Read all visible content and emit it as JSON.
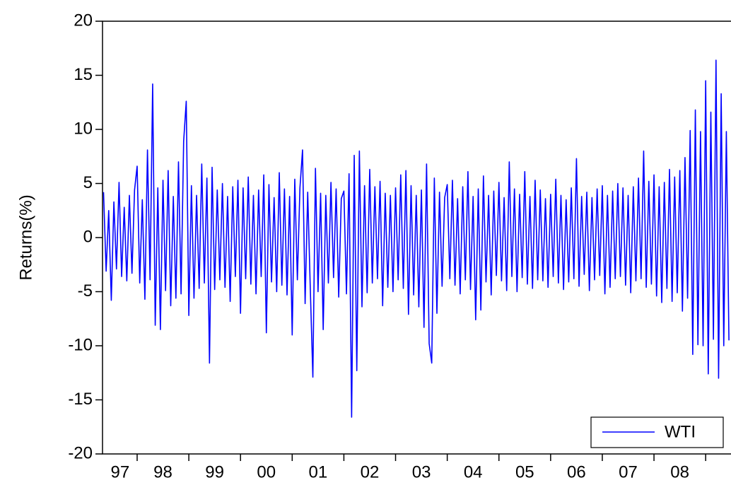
{
  "chart_data": {
    "type": "line",
    "y_label": "Returns(%)",
    "xlim": [
      1997.33,
      2009.49
    ],
    "ylim": [
      -20,
      20
    ],
    "yticks": [
      -20,
      -15,
      -10,
      -5,
      0,
      5,
      10,
      15,
      20
    ],
    "xticks": [
      {
        "value": 1997.67,
        "label": "97"
      },
      {
        "value": 1998.5,
        "label": "98"
      },
      {
        "value": 1999.5,
        "label": "99"
      },
      {
        "value": 2000.5,
        "label": "00"
      },
      {
        "value": 2001.5,
        "label": "01"
      },
      {
        "value": 2002.5,
        "label": "02"
      },
      {
        "value": 2003.5,
        "label": "03"
      },
      {
        "value": 2004.5,
        "label": "04"
      },
      {
        "value": 2005.5,
        "label": "05"
      },
      {
        "value": 2006.5,
        "label": "06"
      },
      {
        "value": 2007.5,
        "label": "07"
      },
      {
        "value": 2008.5,
        "label": "08"
      }
    ],
    "xtick_marks": [
      1998,
      1999,
      2000,
      2001,
      2002,
      2003,
      2004,
      2005,
      2006,
      2007,
      2008,
      2009
    ],
    "legend": "bottom-right",
    "x": [
      1997.35,
      1997.4,
      1997.45,
      1997.5,
      1997.55,
      1997.6,
      1997.65,
      1997.7,
      1997.75,
      1997.8,
      1997.85,
      1997.9,
      1997.95,
      1998,
      1998.05,
      1998.1,
      1998.15,
      1998.2,
      1998.25,
      1998.3,
      1998.35,
      1998.4,
      1998.45,
      1998.5,
      1998.55,
      1998.6,
      1998.65,
      1998.7,
      1998.75,
      1998.8,
      1998.85,
      1998.9,
      1998.95,
      1999,
      1999.05,
      1999.1,
      1999.15,
      1999.2,
      1999.25,
      1999.3,
      1999.35,
      1999.4,
      1999.45,
      1999.5,
      1999.55,
      1999.6,
      1999.65,
      1999.7,
      1999.75,
      1999.8,
      1999.85,
      1999.9,
      1999.95,
      2000,
      2000.05,
      2000.1,
      2000.15,
      2000.2,
      2000.25,
      2000.3,
      2000.35,
      2000.4,
      2000.45,
      2000.5,
      2000.55,
      2000.6,
      2000.65,
      2000.7,
      2000.75,
      2000.8,
      2000.85,
      2000.9,
      2000.95,
      2001,
      2001.05,
      2001.1,
      2001.15,
      2001.2,
      2001.25,
      2001.3,
      2001.35,
      2001.4,
      2001.45,
      2001.5,
      2001.55,
      2001.6,
      2001.65,
      2001.7,
      2001.75,
      2001.8,
      2001.85,
      2001.9,
      2001.95,
      2002,
      2002.05,
      2002.1,
      2002.15,
      2002.2,
      2002.25,
      2002.3,
      2002.35,
      2002.4,
      2002.45,
      2002.5,
      2002.55,
      2002.6,
      2002.65,
      2002.7,
      2002.75,
      2002.8,
      2002.85,
      2002.9,
      2002.95,
      2003,
      2003.05,
      2003.1,
      2003.15,
      2003.2,
      2003.25,
      2003.3,
      2003.35,
      2003.4,
      2003.45,
      2003.5,
      2003.55,
      2003.6,
      2003.65,
      2003.7,
      2003.75,
      2003.8,
      2003.85,
      2003.9,
      2003.95,
      2004,
      2004.05,
      2004.1,
      2004.15,
      2004.2,
      2004.25,
      2004.3,
      2004.35,
      2004.4,
      2004.45,
      2004.5,
      2004.55,
      2004.6,
      2004.65,
      2004.7,
      2004.75,
      2004.8,
      2004.85,
      2004.9,
      2004.95,
      2005,
      2005.05,
      2005.1,
      2005.15,
      2005.2,
      2005.25,
      2005.3,
      2005.35,
      2005.4,
      2005.45,
      2005.5,
      2005.55,
      2005.6,
      2005.65,
      2005.7,
      2005.75,
      2005.8,
      2005.85,
      2005.9,
      2005.95,
      2006,
      2006.05,
      2006.1,
      2006.15,
      2006.2,
      2006.25,
      2006.3,
      2006.35,
      2006.4,
      2006.45,
      2006.5,
      2006.55,
      2006.6,
      2006.65,
      2006.7,
      2006.75,
      2006.8,
      2006.85,
      2006.9,
      2006.95,
      2007,
      2007.05,
      2007.1,
      2007.15,
      2007.2,
      2007.25,
      2007.3,
      2007.35,
      2007.4,
      2007.45,
      2007.5,
      2007.55,
      2007.6,
      2007.65,
      2007.7,
      2007.75,
      2007.8,
      2007.85,
      2007.9,
      2007.95,
      2008,
      2008.05,
      2008.1,
      2008.15,
      2008.2,
      2008.25,
      2008.3,
      2008.35,
      2008.4,
      2008.45,
      2008.5,
      2008.55,
      2008.6,
      2008.65,
      2008.7,
      2008.75,
      2008.8,
      2008.85,
      2008.9,
      2008.95,
      2009,
      2009.05,
      2009.1,
      2009.15,
      2009.2,
      2009.25,
      2009.3,
      2009.35,
      2009.4,
      2009.45
    ],
    "series": [
      {
        "name": "WTI",
        "color": "#0000ff",
        "values": [
          4.2,
          -3.1,
          2.5,
          -5.8,
          3.3,
          -2.9,
          5.1,
          -3.6,
          2.8,
          -4.0,
          3.9,
          -3.3,
          4.4,
          6.6,
          -4.2,
          3.5,
          -5.7,
          8.1,
          -3.9,
          14.2,
          -8.1,
          4.6,
          -8.5,
          5.3,
          -4.9,
          6.2,
          -6.3,
          3.8,
          -5.6,
          7.0,
          -5.2,
          8.9,
          12.6,
          -7.2,
          4.8,
          -5.6,
          3.9,
          -4.7,
          6.8,
          -4.2,
          5.5,
          -11.6,
          6.5,
          -4.8,
          4.4,
          -3.9,
          5.0,
          -4.6,
          3.8,
          -5.9,
          4.7,
          -3.6,
          5.3,
          -7.0,
          4.6,
          -3.8,
          5.6,
          -4.3,
          3.9,
          -5.2,
          4.4,
          -3.6,
          5.8,
          -8.8,
          4.9,
          -4.1,
          3.7,
          -5.0,
          6.0,
          -4.4,
          4.5,
          -5.3,
          3.8,
          -9.0,
          5.4,
          -3.9,
          4.6,
          8.1,
          -6.1,
          4.2,
          -4.7,
          -12.9,
          6.4,
          -5.0,
          4.1,
          -8.5,
          3.9,
          -4.2,
          5.1,
          -3.7,
          4.5,
          -5.5,
          3.6,
          4.3,
          -5.2,
          5.9,
          -16.6,
          7.6,
          -12.3,
          8.0,
          -6.4,
          4.8,
          -5.1,
          6.3,
          -4.2,
          4.7,
          -3.8,
          5.2,
          -6.3,
          4.1,
          -4.6,
          3.9,
          -5.0,
          4.6,
          -3.9,
          5.8,
          -4.7,
          6.2,
          -7.1,
          4.8,
          -5.3,
          3.9,
          -6.4,
          4.4,
          -8.3,
          6.8,
          -9.8,
          -11.6,
          5.5,
          -7.0,
          4.2,
          -4.5,
          3.7,
          4.9,
          -3.8,
          5.3,
          -4.4,
          3.6,
          -5.2,
          4.7,
          -3.9,
          6.1,
          -4.8,
          3.8,
          -7.6,
          4.5,
          -6.7,
          5.7,
          -4.1,
          3.9,
          -5.3,
          4.3,
          -3.5,
          5.1,
          -4.0,
          3.7,
          -4.9,
          7.0,
          -3.6,
          4.5,
          -5.0,
          4.0,
          -3.7,
          6.1,
          -4.3,
          3.8,
          -4.7,
          5.3,
          -3.9,
          4.4,
          -4.0,
          3.6,
          -4.6,
          4.0,
          -3.6,
          5.4,
          -4.2,
          3.9,
          -4.8,
          3.5,
          -4.1,
          4.6,
          -3.8,
          7.3,
          -4.5,
          3.8,
          -3.4,
          4.2,
          -4.9,
          3.7,
          -3.9,
          4.5,
          -3.5,
          4.8,
          -5.2,
          3.9,
          -4.6,
          4.3,
          -3.8,
          5.0,
          -3.6,
          4.6,
          -4.4,
          3.9,
          -5.1,
          4.7,
          -4.0,
          5.5,
          -3.8,
          8.0,
          -4.6,
          5.2,
          -4.3,
          5.8,
          -5.4,
          4.7,
          -6.0,
          5.1,
          -4.7,
          6.3,
          -5.9,
          5.6,
          -5.1,
          6.2,
          -6.8,
          7.4,
          -5.6,
          9.9,
          -10.8,
          11.8,
          -9.9,
          9.8,
          -10.0,
          14.5,
          -12.6,
          11.6,
          -9.4,
          16.4,
          -13.0,
          13.3,
          -10.0,
          9.8,
          -9.5
        ]
      }
    ]
  }
}
